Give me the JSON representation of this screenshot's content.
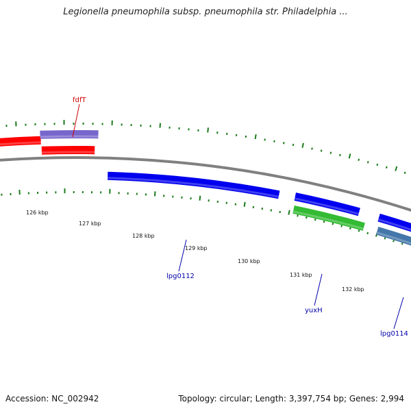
{
  "title": "Legionella pneumophila subsp. pneumophila str. Philadelphia ...",
  "footer": {
    "accession": "Accession: NC_002942",
    "summary": "Topology: circular; Length: 3,397,754 bp; Genes: 2,994"
  },
  "colors": {
    "backbone": "#808080",
    "tick": "#1a7a1a",
    "red": "#ff0000",
    "blue": "#0000ee",
    "purple": "#7766cc",
    "green": "#33bb33",
    "steel": "#4477aa",
    "label_red": "#cc0000",
    "label_blue": "#0000aa"
  },
  "scale": {
    "labels": [
      "126 kbp",
      "127 kbp",
      "128 kbp",
      "129 kbp",
      "130 kbp",
      "131 kbp",
      "132 kbp"
    ]
  },
  "genes": [
    {
      "name": "fdfT",
      "color": "purple",
      "label_color": "label_red"
    },
    {
      "name": "lpg0112",
      "color": "blue",
      "label_color": "label_blue"
    },
    {
      "name": "yuxH",
      "color": "green",
      "label_color": "label_blue"
    },
    {
      "name": "lpg0114",
      "color": "steel",
      "label_color": "label_blue"
    }
  ]
}
